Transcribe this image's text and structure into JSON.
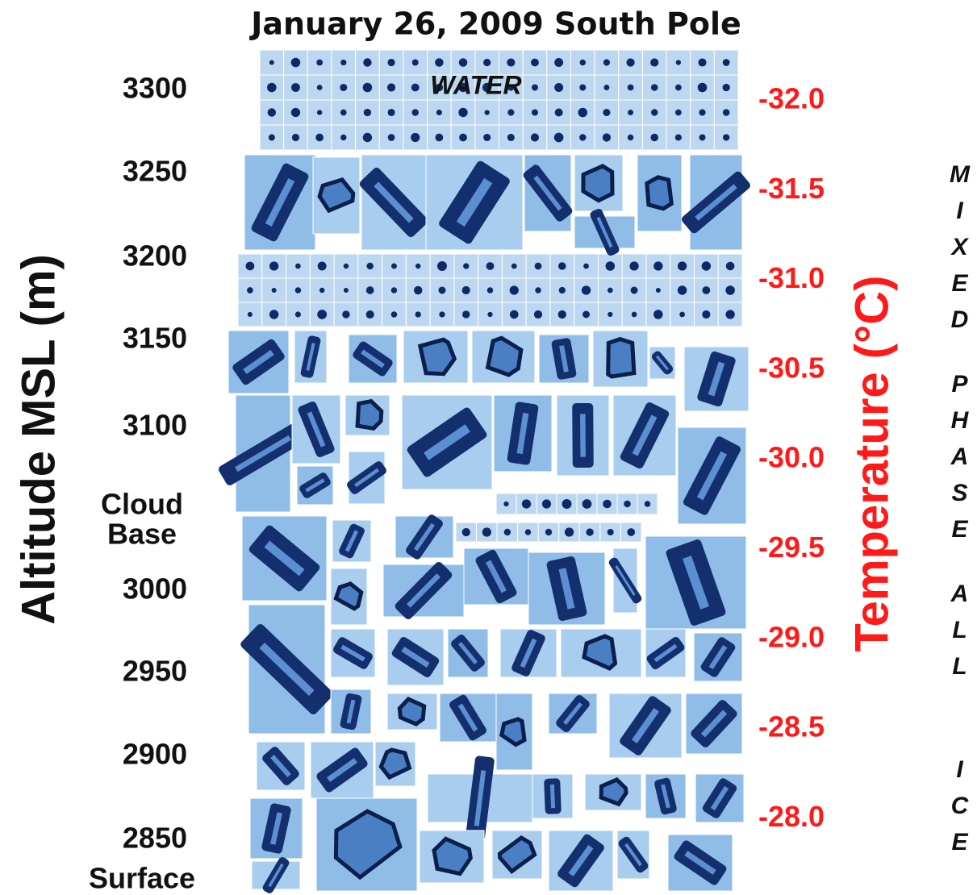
{
  "title": "January 26, 2009 South Pole",
  "left_axis": {
    "title": "Altitude MSL (m)",
    "labels": [
      "3300",
      "3250",
      "3200",
      "3150",
      "3100",
      "Cloud",
      "Base",
      "3000",
      "2950",
      "2900",
      "2850",
      "Surface"
    ]
  },
  "right_axis": {
    "title": "Temperature (°C)",
    "labels": [
      "-32.0",
      "-31.5",
      "-31.0",
      "-30.5",
      "-30.0",
      "-29.5",
      "-29.0",
      "-28.5",
      "-28.0"
    ]
  },
  "annotations": {
    "water": "WATER",
    "phase": [
      "MIXED",
      "PHASE",
      "ALL",
      "ICE"
    ]
  }
}
